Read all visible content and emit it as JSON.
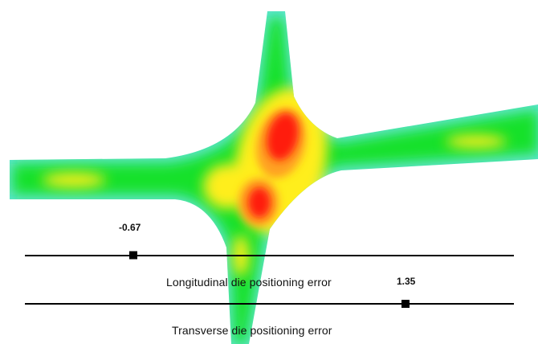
{
  "scales": {
    "longitudinal": {
      "label": "Longitudinal die positioning error",
      "value_label": "-0.67"
    },
    "transverse": {
      "label": "Transverse die positioning error",
      "value_label": "1.35"
    }
  },
  "colors": {
    "edge": "#5fe6cf",
    "low": "#12e12a",
    "mid": "#ffee1e",
    "high": "#ff1f0e",
    "line": "#000000"
  }
}
